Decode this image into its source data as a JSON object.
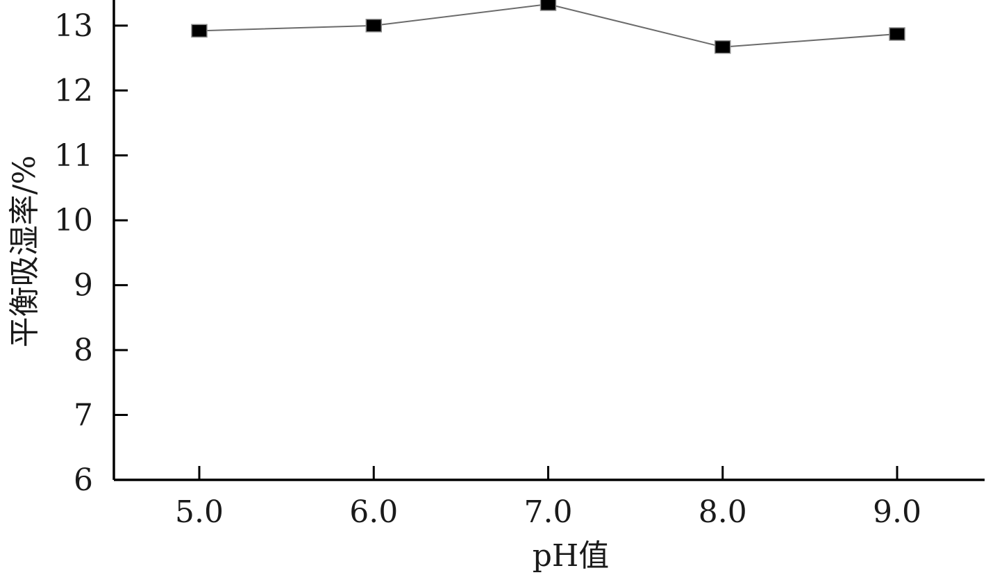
{
  "chart_data": {
    "type": "line",
    "title": "",
    "xlabel": "pH值",
    "ylabel": "平衡吸湿率/%",
    "categories": [
      "5.0",
      "6.0",
      "7.0",
      "8.0",
      "9.0"
    ],
    "x": [
      5.0,
      6.0,
      7.0,
      8.0,
      9.0
    ],
    "series": [
      {
        "values": [
          12.92,
          13.0,
          13.33,
          12.67,
          12.87
        ]
      }
    ],
    "xlim": [
      4.5,
      9.5
    ],
    "ylim": [
      6,
      13.4
    ],
    "yticks": [
      "6",
      "7",
      "8",
      "9",
      "10",
      "11",
      "12",
      "13"
    ],
    "grid": false,
    "legend": "none",
    "colors": {
      "line": "#6b6b6b",
      "marker": "#000000",
      "axis": "#000000"
    }
  }
}
